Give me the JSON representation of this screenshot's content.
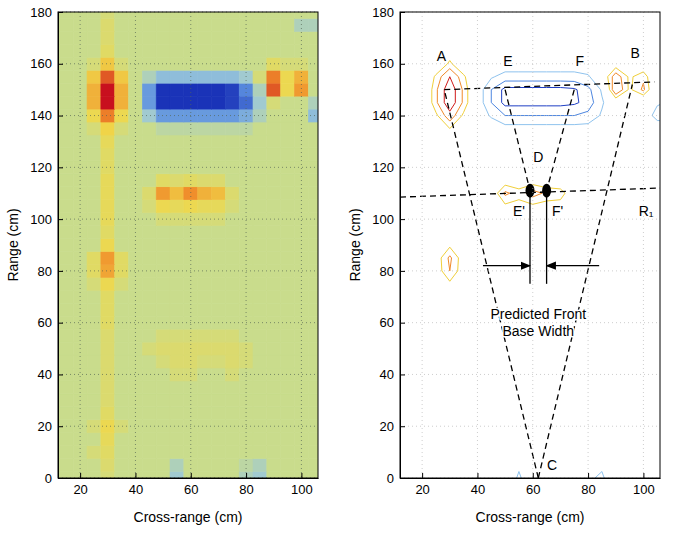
{
  "chart_data": [
    {
      "type": "heatmap",
      "xlabel": "Cross-range (cm)",
      "ylabel": "Range (cm)",
      "xlim": [
        12,
        106
      ],
      "ylim": [
        0,
        180
      ],
      "xticks": [
        20,
        40,
        60,
        80,
        100
      ],
      "yticks": [
        0,
        20,
        40,
        60,
        80,
        100,
        120,
        140,
        160,
        180
      ],
      "grid": true,
      "zlim": [
        -1,
        1
      ],
      "colors": [
        "#1a33b8",
        "#5b8fe0",
        "#9cc8d8",
        "#c9dc8c",
        "#f0d84a",
        "#f08a2a",
        "#c8101e"
      ],
      "x": [
        10,
        15,
        20,
        25,
        30,
        35,
        40,
        45,
        50,
        55,
        60,
        65,
        70,
        75,
        80,
        85,
        90,
        95,
        100,
        105,
        110
      ],
      "y": [
        0,
        5,
        10,
        15,
        20,
        25,
        30,
        35,
        40,
        45,
        50,
        55,
        60,
        65,
        70,
        75,
        80,
        85,
        90,
        95,
        100,
        105,
        110,
        115,
        120,
        125,
        130,
        135,
        140,
        145,
        150,
        155,
        160,
        165,
        170,
        175,
        180
      ],
      "z": [
        [
          0,
          0,
          0,
          0,
          0.1,
          0,
          0,
          0,
          0,
          -0.3,
          0,
          0,
          0,
          0,
          -0.2,
          -0.3,
          0,
          0,
          0,
          0,
          0
        ],
        [
          0,
          0,
          0,
          0,
          0.15,
          0,
          0,
          0,
          0,
          -0.2,
          0,
          0,
          0,
          0,
          -0.1,
          -0.2,
          0,
          0,
          0,
          0,
          0
        ],
        [
          0,
          0,
          0,
          0.1,
          0.2,
          0,
          0,
          0,
          0,
          0,
          0,
          0,
          0,
          0,
          0,
          0,
          0,
          0,
          0,
          0,
          0
        ],
        [
          0,
          0,
          0,
          0,
          0.25,
          0,
          0,
          0,
          0,
          0,
          0,
          0,
          0,
          0,
          0,
          0,
          0,
          0,
          0,
          0,
          0
        ],
        [
          0,
          0,
          0,
          0.1,
          0.3,
          0.1,
          0,
          0,
          0,
          0,
          0,
          0,
          0,
          0,
          0,
          0,
          0,
          0,
          0,
          0,
          0
        ],
        [
          0,
          0,
          0,
          0,
          0.2,
          0,
          0,
          0,
          0,
          0,
          0,
          0,
          0,
          0,
          0,
          0,
          0,
          0,
          0,
          0,
          0
        ],
        [
          0,
          0,
          0,
          0,
          0.15,
          0,
          0,
          0,
          0,
          0,
          0,
          0,
          0,
          0,
          0,
          0,
          0,
          0,
          0,
          0,
          0
        ],
        [
          0,
          0,
          0,
          0,
          0.15,
          0,
          0,
          0,
          0,
          0,
          0,
          0,
          0,
          0,
          0,
          0,
          0,
          0,
          0,
          0,
          0
        ],
        [
          0,
          0,
          0,
          0,
          0.15,
          0,
          0,
          0,
          0,
          0.1,
          0.1,
          0,
          0,
          0.1,
          0,
          0,
          0,
          0,
          0,
          0,
          0
        ],
        [
          0,
          0,
          0,
          0,
          0.15,
          0,
          0,
          0,
          0.1,
          0.15,
          0.15,
          0.1,
          0.1,
          0.15,
          0.1,
          0,
          0,
          0,
          0,
          0,
          0
        ],
        [
          0,
          0,
          0,
          0,
          0.15,
          0,
          0,
          0.1,
          0.15,
          0.15,
          0.15,
          0.15,
          0.15,
          0.15,
          0.1,
          0,
          0,
          0,
          0,
          0,
          0
        ],
        [
          0,
          0,
          0,
          0,
          0.15,
          0,
          0,
          0,
          0.1,
          0.1,
          0.1,
          0.1,
          0.1,
          0.1,
          0,
          0,
          0,
          0,
          0,
          0,
          0
        ],
        [
          0,
          0,
          0,
          0,
          0.2,
          0,
          0,
          0,
          0,
          0,
          0,
          0,
          0,
          0,
          0,
          0,
          0,
          0,
          0,
          0,
          0
        ],
        [
          0,
          0,
          0,
          0,
          0.2,
          0,
          0,
          0,
          0,
          0,
          0,
          0,
          0,
          0,
          0,
          0,
          0,
          0,
          0,
          0,
          0
        ],
        [
          0,
          0,
          0,
          0,
          0.2,
          0,
          0,
          0,
          0,
          0,
          0,
          0,
          0,
          0,
          0,
          0,
          0,
          0,
          0,
          0,
          0
        ],
        [
          0,
          0,
          0,
          0.1,
          0.3,
          0.1,
          0,
          0,
          0,
          0,
          0,
          0,
          0,
          0,
          0,
          0,
          0,
          0,
          0,
          0,
          0
        ],
        [
          0,
          0,
          0,
          0.2,
          0.55,
          0.2,
          0,
          0,
          0,
          0,
          0,
          0,
          0,
          0,
          0,
          0,
          0,
          0,
          0,
          0,
          0
        ],
        [
          0,
          0,
          0,
          0.2,
          0.6,
          0.2,
          0,
          0,
          0,
          0,
          0,
          0,
          0,
          0,
          0,
          0,
          0,
          0,
          0,
          0,
          0
        ],
        [
          0,
          0,
          0,
          0,
          0.3,
          0,
          0,
          0,
          0,
          0,
          0,
          0,
          0,
          0,
          0,
          0,
          0,
          0,
          0,
          0,
          0
        ],
        [
          0,
          0,
          0,
          0,
          0.2,
          0,
          0,
          0,
          0,
          0,
          0,
          0,
          0,
          0,
          0,
          0,
          0,
          0,
          0,
          0,
          0
        ],
        [
          0,
          0,
          0,
          0,
          0.25,
          0,
          0,
          0,
          0.1,
          0.1,
          0.1,
          0.1,
          0.1,
          0,
          0,
          0,
          0,
          0,
          0,
          0,
          0
        ],
        [
          0,
          0,
          0,
          0,
          0.25,
          0,
          0,
          0.1,
          0.3,
          0.25,
          0.3,
          0.25,
          0.25,
          0.1,
          0,
          0,
          0,
          0,
          0,
          0,
          0
        ],
        [
          0,
          0,
          0,
          0,
          0.25,
          0,
          0,
          0.15,
          0.6,
          0.45,
          0.65,
          0.5,
          0.45,
          0.15,
          0,
          0,
          0,
          0,
          0,
          0,
          0
        ],
        [
          0,
          0,
          0,
          0,
          0.25,
          0,
          0,
          0,
          0.2,
          0.15,
          0.2,
          0.15,
          0.15,
          0,
          0,
          0,
          0,
          0,
          0,
          0,
          0
        ],
        [
          0,
          0,
          0,
          0,
          0.2,
          0,
          0,
          0,
          0,
          0,
          0,
          0,
          0,
          0,
          0,
          0,
          0,
          0,
          0,
          0,
          0
        ],
        [
          0,
          0,
          0,
          0,
          0.2,
          0,
          0,
          0,
          0,
          0,
          0,
          0,
          0,
          0,
          0,
          0,
          0,
          0,
          0,
          0,
          0
        ],
        [
          0,
          0,
          0,
          0,
          0.25,
          0,
          0,
          0,
          0,
          0,
          0,
          0,
          0,
          0,
          0,
          0,
          0,
          0,
          0,
          0,
          0
        ],
        [
          0,
          0,
          0,
          0.1,
          0.35,
          0.1,
          0,
          0,
          -0.1,
          -0.1,
          -0.1,
          -0.1,
          -0.1,
          -0.1,
          -0.1,
          0,
          0,
          0,
          0,
          0,
          0
        ],
        [
          0,
          0,
          0,
          0.3,
          0.7,
          0.3,
          0,
          -0.3,
          -0.6,
          -0.6,
          -0.6,
          -0.6,
          -0.6,
          -0.6,
          -0.5,
          -0.2,
          0,
          0,
          0,
          -0.4,
          -0.5
        ],
        [
          0,
          0,
          0,
          0.5,
          1,
          0.5,
          0,
          -0.6,
          -1,
          -1,
          -1,
          -1,
          -1,
          -0.95,
          -0.8,
          -0.3,
          0.1,
          0,
          0,
          -0.2,
          -0.3
        ],
        [
          0,
          0,
          0,
          0.5,
          1,
          0.5,
          0,
          -0.6,
          -1,
          -1,
          -1,
          -1,
          -1,
          -0.95,
          -0.7,
          -0.2,
          0.8,
          0.3,
          0.6,
          0,
          0
        ],
        [
          0,
          0,
          0,
          0.4,
          0.8,
          0.4,
          0,
          -0.2,
          -0.4,
          -0.4,
          -0.4,
          -0.4,
          -0.4,
          -0.4,
          -0.3,
          0.1,
          0.7,
          0.3,
          0.5,
          0,
          0
        ],
        [
          0,
          0,
          0,
          0.1,
          0.4,
          0.1,
          0,
          0,
          0,
          0,
          0,
          0,
          0,
          0,
          0,
          0,
          0.2,
          0.1,
          0.1,
          0,
          0
        ],
        [
          0,
          0,
          0,
          0,
          0.2,
          0,
          0,
          0,
          0,
          0,
          0,
          0,
          0,
          0,
          0,
          0,
          0,
          0,
          0,
          0,
          0
        ],
        [
          0,
          0,
          0,
          0,
          0.15,
          0,
          0,
          0,
          0,
          0,
          0,
          0,
          0,
          0,
          0,
          0,
          0,
          0,
          0,
          0,
          0
        ],
        [
          0,
          0,
          0,
          0,
          0.15,
          0,
          0,
          0,
          0,
          0,
          0,
          0,
          0,
          0,
          0,
          0,
          0,
          0,
          -0.2,
          -0.2,
          0
        ],
        [
          0,
          0,
          0,
          0,
          0.1,
          0,
          0,
          0,
          0,
          0,
          0,
          0,
          0,
          0,
          0,
          0,
          0,
          0,
          0,
          0,
          0
        ]
      ]
    },
    {
      "type": "contour",
      "xlabel": "Cross-range (cm)",
      "ylabel": "Range (cm)",
      "xlim": [
        12,
        106
      ],
      "ylim": [
        0,
        180
      ],
      "xticks": [
        20,
        40,
        60,
        80,
        100
      ],
      "yticks": [
        0,
        20,
        40,
        60,
        80,
        100,
        120,
        140,
        160,
        180
      ],
      "grid": true,
      "levels": [
        -0.9,
        -0.6,
        -0.25,
        0.35,
        0.55,
        0.8
      ],
      "colors": [
        "#1f3fc4",
        "#4d86e0",
        "#8fc3ee",
        "#f0cf3a",
        "#f08a2a",
        "#d01a1a"
      ],
      "lines": [
        {
          "line_style": "dashed",
          "x": [
            28,
            104
          ],
          "y": [
            150,
            153
          ]
        },
        {
          "line_style": "dashed",
          "x": [
            12,
            106
          ],
          "y": [
            108.5,
            112
          ]
        },
        {
          "line_style": "dashed",
          "x": [
            62,
            28
          ],
          "y": [
            0,
            150
          ]
        },
        {
          "line_style": "dashed",
          "x": [
            62,
            96
          ],
          "y": [
            0,
            152
          ]
        },
        {
          "line_style": "dashed",
          "x": [
            50,
            59
          ],
          "y": [
            150,
            111
          ]
        },
        {
          "line_style": "dashed",
          "x": [
            75,
            65
          ],
          "y": [
            150,
            111
          ]
        },
        {
          "line_style": "solid",
          "x": [
            59,
            59
          ],
          "y": [
            75,
            111
          ]
        },
        {
          "line_style": "solid",
          "x": [
            65,
            65
          ],
          "y": [
            75,
            111
          ]
        },
        {
          "line_style": "solid",
          "marker": "arrow",
          "x": [
            42,
            59
          ],
          "y": [
            82,
            82
          ]
        },
        {
          "line_style": "solid",
          "marker": "arrow",
          "x": [
            84,
            65
          ],
          "y": [
            82,
            82
          ]
        }
      ],
      "points": {
        "marker": "ellipse",
        "color": "#000000",
        "x": [
          59,
          65
        ],
        "y": [
          111,
          111
        ]
      },
      "annotations": [
        {
          "text": "A",
          "x": 27,
          "y": 163
        },
        {
          "text": "B",
          "x": 97,
          "y": 164
        },
        {
          "text": "E",
          "x": 51,
          "y": 161
        },
        {
          "text": "F",
          "x": 77,
          "y": 161
        },
        {
          "text": "D",
          "x": 62,
          "y": 124
        },
        {
          "text": "E'",
          "x": 55,
          "y": 103
        },
        {
          "text": "F'",
          "x": 69,
          "y": 103
        },
        {
          "text": "R₁",
          "x": 101,
          "y": 103
        },
        {
          "text": "C",
          "x": 67,
          "y": 5
        },
        {
          "text": "Predicted Front Base Width",
          "x": 62,
          "y": 60
        }
      ]
    }
  ]
}
